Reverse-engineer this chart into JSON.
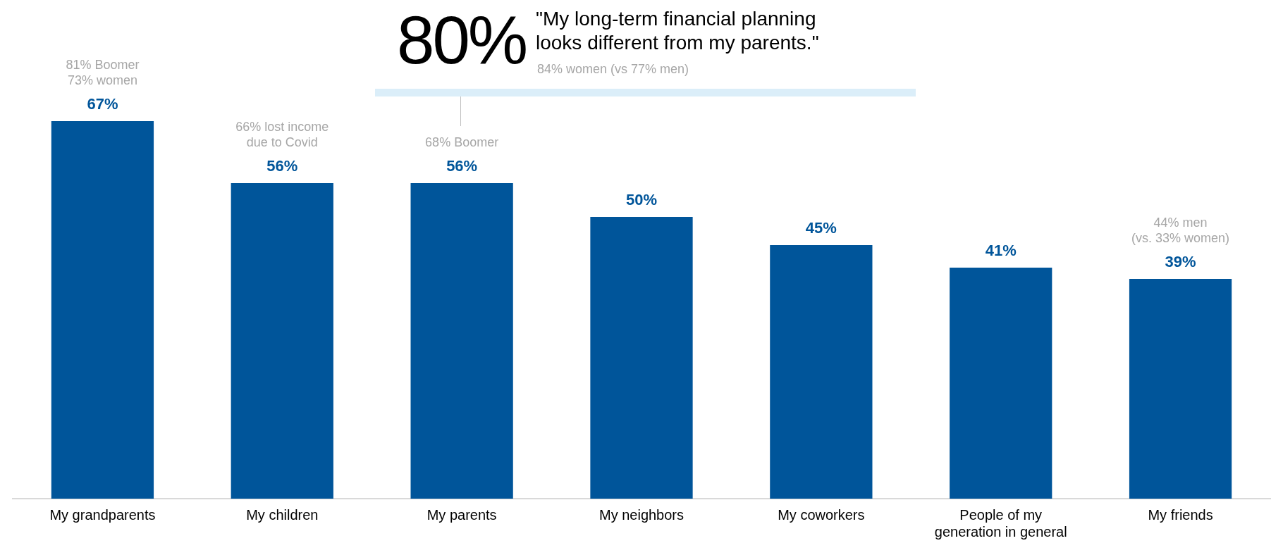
{
  "chart_data": {
    "type": "bar",
    "categories": [
      "My grandparents",
      "My children",
      "My parents",
      "My neighbors",
      "My coworkers",
      "People of my generation in general",
      "My friends"
    ],
    "values": [
      67,
      56,
      56,
      50,
      45,
      41,
      39
    ],
    "color": "#00559a",
    "value_labels": [
      "67%",
      "56%",
      "56%",
      "50%",
      "45%",
      "41%",
      "39%"
    ],
    "grid": false,
    "legend": false,
    "tick_labels": "x",
    "annotations": [
      "80%",
      "\"My long-term financial planning\nlooks different from my parents.\"",
      "84% women (vs 77% men)",
      {
        "text": "81% Boomer\n73% women",
        "x": "My grandparents",
        "y": 67
      },
      {
        "text": "66% lost income\ndue to Covid",
        "x": "My children",
        "y": 56
      },
      {
        "text": "68% Boomer",
        "x": "My parents",
        "y": 56
      },
      {
        "text": "44% men\n(vs. 33% women)",
        "x": "My friends",
        "y": 39
      }
    ]
  }
}
